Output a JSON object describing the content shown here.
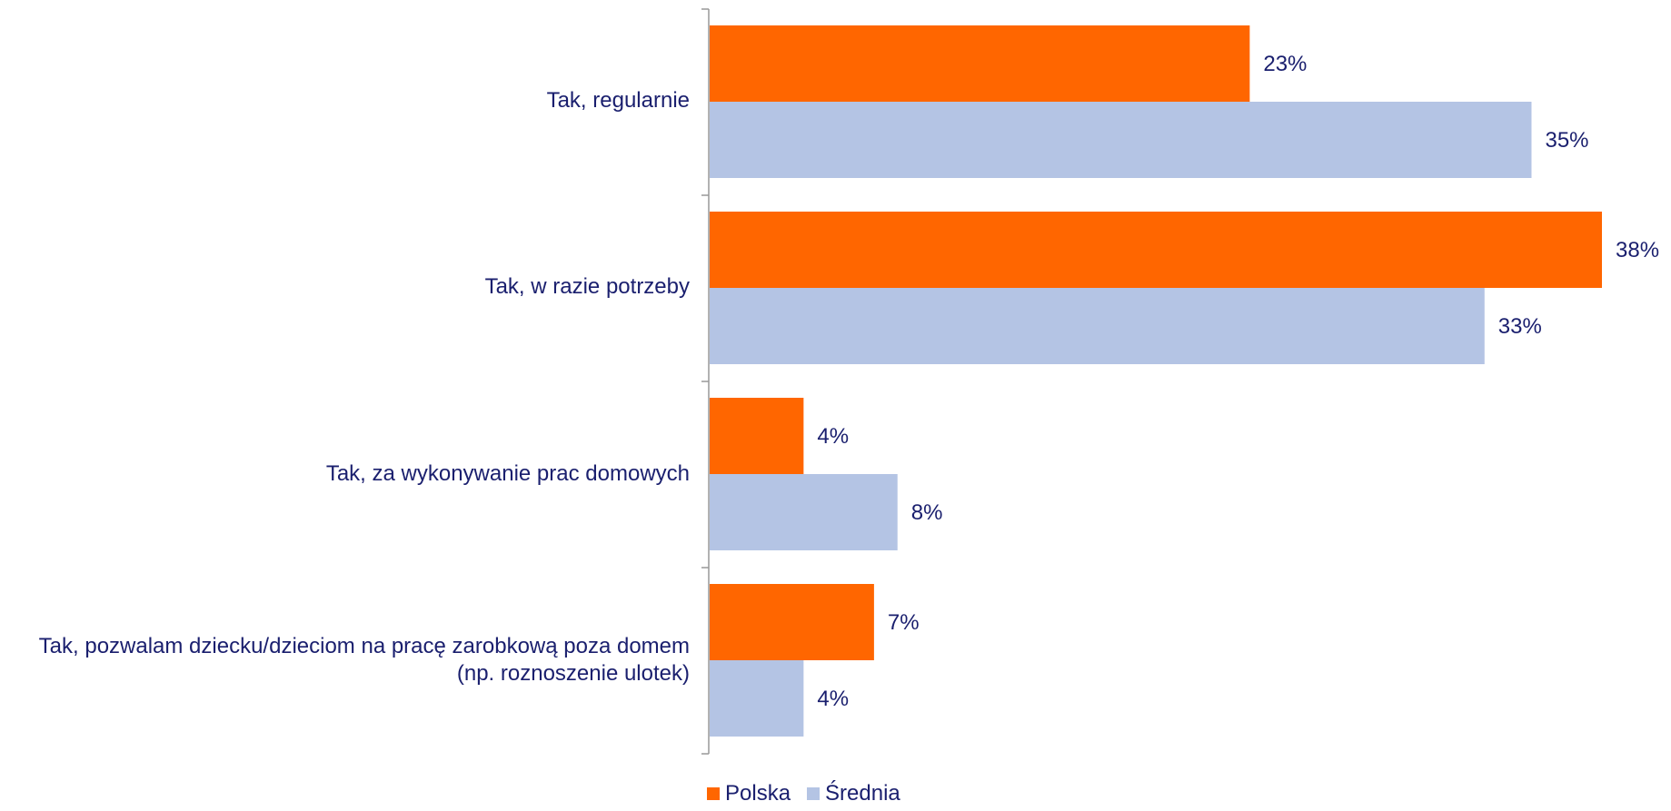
{
  "chart_data": {
    "type": "bar",
    "orientation": "horizontal",
    "categories": [
      "Tak, regularnie",
      "Tak, w razie potrzeby",
      "Tak, za wykonywanie prac domowych",
      "Tak, pozwalam dziecku/dzieciom na pracę zarobkową poza domem (np. roznoszenie ulotek)"
    ],
    "series": [
      {
        "name": "Polska",
        "values": [
          23,
          38,
          4,
          7
        ],
        "labels": [
          "23%",
          "38%",
          "4%",
          "7%"
        ],
        "color": "#ff6600"
      },
      {
        "name": "Średnia",
        "values": [
          35,
          33,
          8,
          4
        ],
        "labels": [
          "35%",
          "33%",
          "8%",
          "4%"
        ],
        "color": "#b4c4e4"
      }
    ],
    "xlim": [
      0,
      38
    ],
    "grid": false,
    "legend_position": "bottom",
    "label_color": "#1a1f6e"
  }
}
